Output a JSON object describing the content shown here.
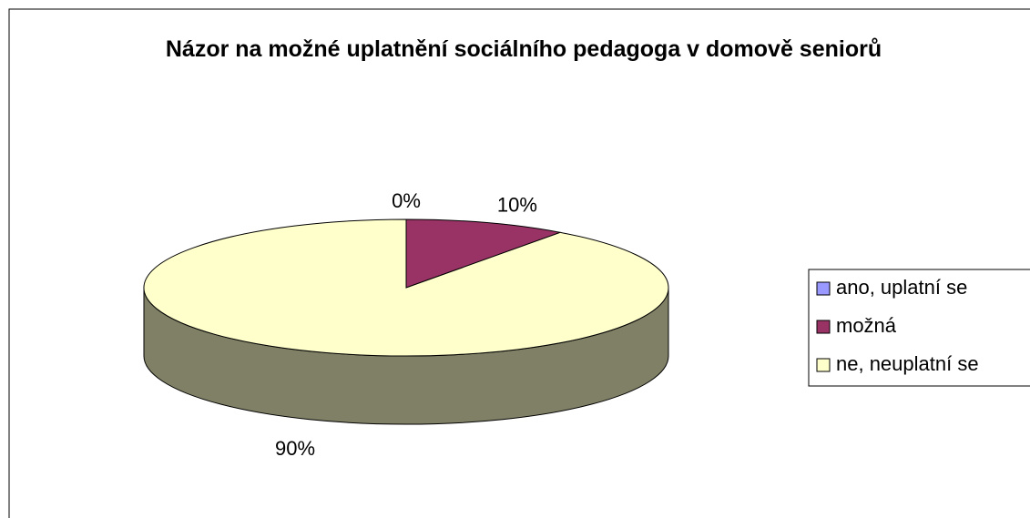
{
  "chart_data": {
    "type": "pie3d",
    "title": "Názor na možné uplatnění sociálního pedagoga v domově seniorů",
    "categories": [
      "ano, uplatní se",
      "možná",
      "ne, neuplatní se"
    ],
    "values": [
      0,
      10,
      90
    ],
    "value_labels": [
      "0%",
      "10%",
      "90%"
    ],
    "colors": [
      "#9999ff",
      "#993366",
      "#ffffcc"
    ],
    "legend": "right"
  }
}
